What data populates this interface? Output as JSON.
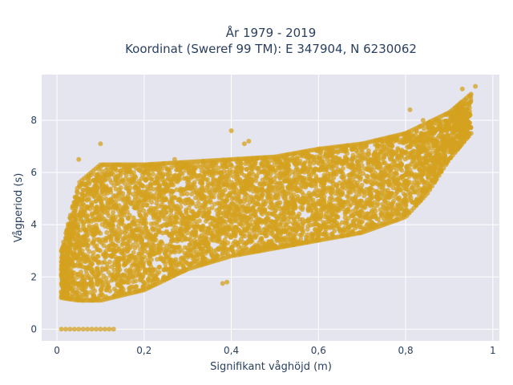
{
  "chart_data": {
    "type": "scatter",
    "title_line1": "År 1979 - 2019",
    "title_line2": "Koordinat (Sweref 99 TM): E 347904, N 6230062",
    "xlabel": "Signifikant våghöjd (m)",
    "ylabel": "Vågperiod (s)",
    "xlim": [
      -0.035,
      1.015
    ],
    "ylim": [
      -0.45,
      9.75
    ],
    "x_ticks": [
      0,
      0.2,
      0.4,
      0.6,
      0.8,
      1
    ],
    "x_tick_labels": [
      "0",
      "0,2",
      "0,4",
      "0,6",
      "0,8",
      "1"
    ],
    "y_ticks": [
      0,
      2,
      4,
      6,
      8
    ],
    "y_tick_labels": [
      "0",
      "2",
      "4",
      "6",
      "8"
    ],
    "marker_color": "#d4a21f",
    "plot_bg": "#e5e5f0",
    "grid": true,
    "band": {
      "x": [
        0.01,
        0.05,
        0.1,
        0.2,
        0.3,
        0.4,
        0.5,
        0.6,
        0.7,
        0.8,
        0.85,
        0.9,
        0.95
      ],
      "y_low": [
        1.2,
        1.1,
        1.1,
        1.5,
        2.3,
        2.8,
        3.1,
        3.4,
        3.7,
        4.3,
        5.2,
        6.5,
        7.5
      ],
      "y_high": [
        3.0,
        5.6,
        6.3,
        6.3,
        6.4,
        6.5,
        6.6,
        6.9,
        7.1,
        7.5,
        7.9,
        8.3,
        9.0
      ]
    },
    "zero_points": {
      "x": [
        0.01,
        0.02,
        0.03,
        0.04,
        0.05,
        0.06,
        0.07,
        0.08,
        0.09,
        0.1,
        0.11,
        0.12,
        0.13
      ],
      "y": [
        0,
        0,
        0,
        0,
        0,
        0,
        0,
        0,
        0,
        0,
        0,
        0,
        0
      ]
    },
    "outliers": {
      "x": [
        0.1,
        0.05,
        0.27,
        0.44,
        0.43,
        0.81,
        0.84,
        0.93,
        0.96,
        0.22,
        0.38,
        0.39,
        0.4,
        0.55
      ],
      "y": [
        7.1,
        6.5,
        6.5,
        7.2,
        7.1,
        8.4,
        8.0,
        9.2,
        9.3,
        1.8,
        1.75,
        1.8,
        7.6,
        5.4
      ]
    }
  }
}
